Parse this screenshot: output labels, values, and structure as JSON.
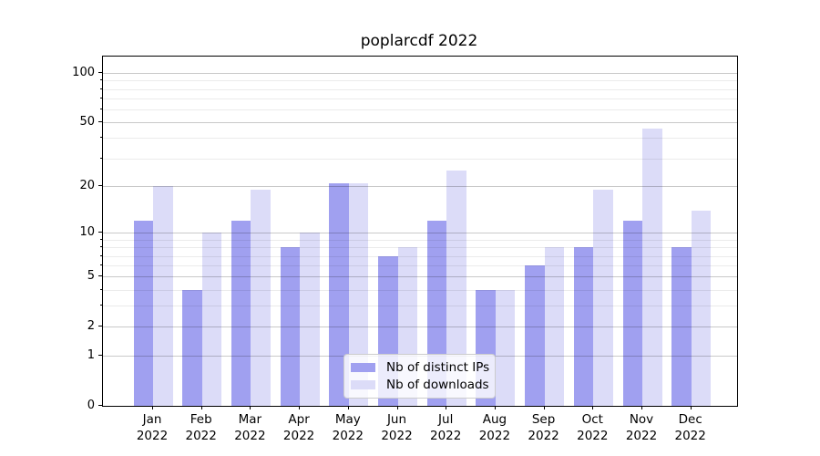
{
  "title": "poplarcdf 2022",
  "chart_data": {
    "type": "bar",
    "title": "poplarcdf 2022",
    "xlabel": "",
    "ylabel": "",
    "categories": [
      "Jan",
      "Feb",
      "Mar",
      "Apr",
      "May",
      "Jun",
      "Jul",
      "Aug",
      "Sep",
      "Oct",
      "Nov",
      "Dec"
    ],
    "category_year": "2022",
    "series": [
      {
        "name": "Nb of distinct IPs",
        "color": "#a0a0f0",
        "values": [
          12,
          4,
          12,
          8,
          21,
          7,
          12,
          4,
          6,
          8,
          12,
          8
        ]
      },
      {
        "name": "Nb of downloads",
        "color": "#dcdcf8",
        "values": [
          20,
          10,
          19,
          10,
          21,
          8,
          25,
          4,
          8,
          19,
          46,
          14
        ]
      }
    ],
    "yscale": "log1p",
    "ylim": [
      0,
      126
    ],
    "yticks": [
      0,
      1,
      2,
      5,
      10,
      20,
      50,
      100
    ],
    "minor_gridlines": [
      3,
      4,
      6,
      7,
      8,
      9,
      30,
      40,
      60,
      70,
      80,
      90
    ],
    "grid": true,
    "legend_position": "lower center"
  },
  "legend": {
    "entries": [
      {
        "label": "Nb of distinct IPs"
      },
      {
        "label": "Nb of downloads"
      }
    ]
  }
}
